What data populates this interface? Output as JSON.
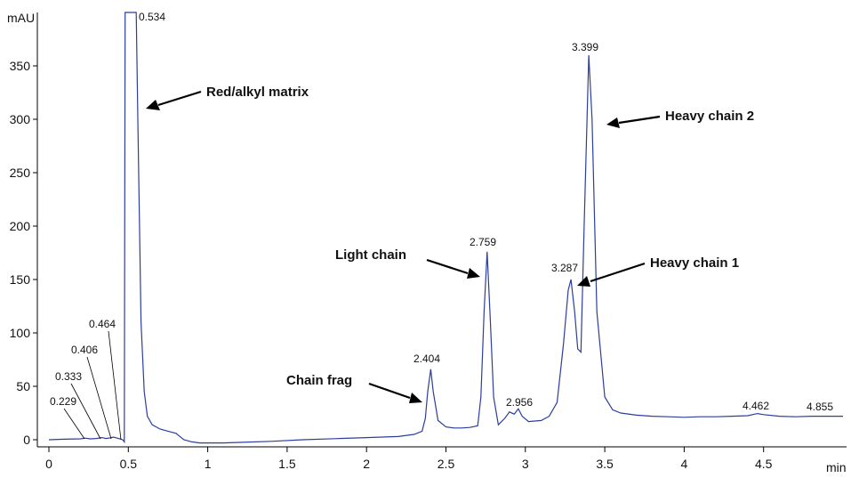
{
  "chart_data": {
    "type": "line",
    "title": "",
    "xlabel": "min",
    "ylabel": "mAU",
    "xlim": [
      0,
      5
    ],
    "ylim": [
      -5,
      400
    ],
    "x_ticks": [
      0,
      0.5,
      1,
      1.5,
      2,
      2.5,
      3,
      3.5,
      4,
      4.5
    ],
    "x_tick_labels": [
      "0",
      "0.5",
      "1",
      "1.5",
      "2",
      "2.5",
      "3",
      "3.5",
      "4",
      "4.5"
    ],
    "y_ticks": [
      0,
      50,
      100,
      150,
      200,
      250,
      300,
      350
    ],
    "y_tick_labels": [
      "0",
      "50",
      "100",
      "150",
      "200",
      "250",
      "300",
      "350"
    ],
    "grid": false,
    "series": [
      {
        "color": "#2c3e9c",
        "x": [
          0,
          0.1,
          0.2,
          0.229,
          0.26,
          0.3,
          0.333,
          0.36,
          0.39,
          0.406,
          0.43,
          0.455,
          0.464,
          0.475,
          0.48,
          0.49,
          0.5,
          0.51,
          0.52,
          0.534,
          0.55,
          0.56,
          0.58,
          0.6,
          0.62,
          0.65,
          0.7,
          0.75,
          0.8,
          0.85,
          0.9,
          0.95,
          1.0,
          1.1,
          1.2,
          1.4,
          1.6,
          1.8,
          2.0,
          2.2,
          2.3,
          2.35,
          2.37,
          2.385,
          2.404,
          2.42,
          2.45,
          2.5,
          2.55,
          2.6,
          2.65,
          2.7,
          2.72,
          2.74,
          2.759,
          2.78,
          2.8,
          2.83,
          2.87,
          2.9,
          2.93,
          2.956,
          2.98,
          3.02,
          3.1,
          3.15,
          3.2,
          3.24,
          3.27,
          3.287,
          3.31,
          3.33,
          3.35,
          3.37,
          3.399,
          3.42,
          3.45,
          3.5,
          3.55,
          3.6,
          3.7,
          3.8,
          3.9,
          4.0,
          4.1,
          4.2,
          4.3,
          4.4,
          4.462,
          4.5,
          4.6,
          4.7,
          4.8,
          4.855,
          4.9,
          5.0
        ],
        "y": [
          0,
          0.5,
          0.8,
          1.5,
          0.8,
          1.2,
          2,
          1.2,
          1.8,
          2.5,
          1.5,
          0.5,
          0,
          -2,
          400,
          400,
          400,
          400,
          400,
          400,
          400,
          300,
          110,
          45,
          22,
          14,
          10,
          8,
          6,
          0,
          -2,
          -3,
          -3,
          -3,
          -2.5,
          -1.5,
          0,
          1,
          2,
          3,
          5,
          8,
          20,
          45,
          66,
          45,
          18,
          12,
          11,
          11,
          11.5,
          13,
          40,
          120,
          176,
          110,
          40,
          14,
          20,
          26,
          24,
          29,
          22,
          17,
          18,
          22,
          35,
          90,
          140,
          150,
          120,
          85,
          82,
          200,
          360,
          300,
          120,
          40,
          28,
          25,
          23,
          22,
          21.5,
          21,
          21.5,
          21.5,
          22,
          22.5,
          24.5,
          23.5,
          22,
          21.5,
          22,
          22,
          22,
          22
        ]
      }
    ],
    "peak_labels": [
      "0.229",
      "0.333",
      "0.406",
      "0.464",
      "0.534",
      "2.404",
      "2.759",
      "2.956",
      "3.287",
      "3.399",
      "4.462",
      "4.855"
    ],
    "annotations": [
      "Red/alkyl matrix",
      "Heavy chain 2",
      "Light chain",
      "Heavy chain 1",
      "Chain frag"
    ]
  }
}
